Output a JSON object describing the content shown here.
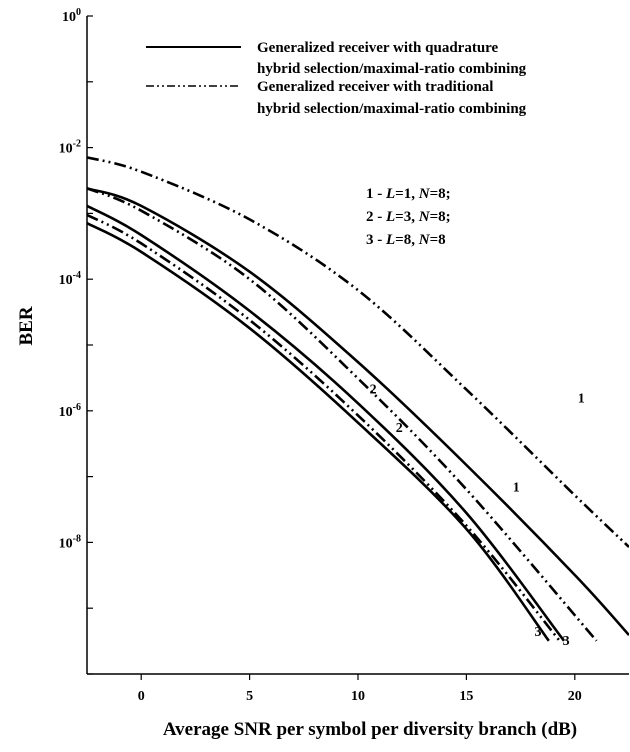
{
  "chart_data": {
    "type": "line",
    "xlabel": "Average SNR per symbol per diversity branch (dB)",
    "ylabel": "BER",
    "xlim": [
      -2.5,
      22.5
    ],
    "ylim_log10": [
      -10,
      0
    ],
    "y_scale": "log",
    "x_ticks": [
      {
        "value": 0,
        "label": "0"
      },
      {
        "value": 5,
        "label": "5"
      },
      {
        "value": 10,
        "label": "10"
      },
      {
        "value": 15,
        "label": "15"
      },
      {
        "value": 20,
        "label": "20"
      }
    ],
    "y_ticks": [
      {
        "exp": 0,
        "base": "10",
        "sup": "0"
      },
      {
        "exp": -2,
        "base": "10",
        "sup": "-2"
      },
      {
        "exp": -4,
        "base": "10",
        "sup": "-4"
      },
      {
        "exp": -6,
        "base": "10",
        "sup": "-6"
      },
      {
        "exp": -8,
        "base": "10",
        "sup": "-8"
      }
    ],
    "legend": {
      "placement": "top-right",
      "entries": [
        {
          "style": "solid",
          "line1": "Generalized receiver with quadrature",
          "line2": "hybrid selection/maximal-ratio combining"
        },
        {
          "style": "dash-dot-dot",
          "line1": "Generalized receiver with traditional",
          "line2": "hybrid selection/maximal-ratio combining"
        }
      ]
    },
    "parameters": [
      {
        "id": "1",
        "L": "1",
        "N": "8",
        "end": ";"
      },
      {
        "id": "2",
        "L": "3",
        "N": "8",
        "end": ";"
      },
      {
        "id": "3",
        "L": "8",
        "N": "8",
        "end": ""
      }
    ],
    "series": [
      {
        "case": "1",
        "style": "solid",
        "x": [
          -2.5,
          0,
          5,
          10,
          15,
          20,
          22.5
        ],
        "ber": [
          0.0024,
          0.0013,
          0.00013,
          5.5e-06,
          1.5e-07,
          3.2e-09,
          3.9e-10
        ]
      },
      {
        "case": "1",
        "style": "dash-dot-dot",
        "x": [
          -2.5,
          0,
          5,
          10,
          15,
          20,
          22.5
        ],
        "ber": [
          0.0071,
          0.0043,
          0.00081,
          6.8e-05,
          2.1e-06,
          5.2e-08,
          8.5e-09
        ]
      },
      {
        "case": "2",
        "style": "solid",
        "x": [
          -2.5,
          0,
          5,
          10,
          15,
          19.5
        ],
        "ber": [
          0.0013,
          0.00047,
          3.3e-05,
          1.3e-06,
          2.8e-08,
          3.2e-10
        ]
      },
      {
        "case": "2",
        "style": "dash-dot-dot",
        "x": [
          -2.5,
          0,
          5,
          10,
          15,
          21
        ],
        "ber": [
          0.0024,
          0.0011,
          0.0001,
          3.1e-06,
          6.4e-08,
          3.2e-10
        ]
      },
      {
        "case": "3",
        "style": "solid",
        "x": [
          -2.5,
          0,
          5,
          10,
          15,
          18.8
        ],
        "ber": [
          0.00071,
          0.00026,
          1.8e-05,
          6.6e-07,
          1.6e-08,
          3.2e-10
        ]
      },
      {
        "case": "3",
        "style": "dash-dot-dot",
        "x": [
          -2.5,
          0,
          5,
          10,
          15,
          19.3
        ],
        "ber": [
          0.00095,
          0.00035,
          2.4e-05,
          8.5e-07,
          1.8e-08,
          3.2e-10
        ]
      }
    ],
    "curve_labels": [
      {
        "text": "1",
        "x": 20.3,
        "ber": 1.6e-06
      },
      {
        "text": "1",
        "x": 17.3,
        "ber": 7.1e-08
      },
      {
        "text": "2",
        "x": 10.7,
        "ber": 2.2e-06
      },
      {
        "text": "2",
        "x": 11.9,
        "ber": 5.7e-07
      },
      {
        "text": "3",
        "x": 18.3,
        "ber": 4.5e-10
      },
      {
        "text": "3",
        "x": 19.6,
        "ber": 3.3e-10
      }
    ]
  }
}
